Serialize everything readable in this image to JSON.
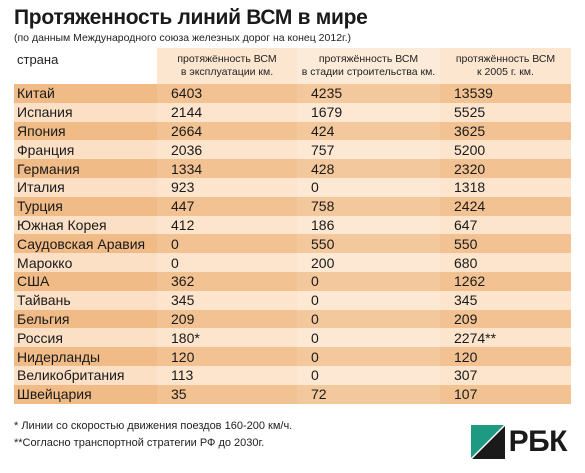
{
  "title": "Протяженность линий ВСМ в мире",
  "subtitle": "(по данным Международного союза железных дорог на конец 2012г.)",
  "table": {
    "headers": {
      "country": "страна",
      "col1_line1": "протяжённость ВСМ",
      "col1_line2": "в эксплуатации км.",
      "col2_line1": "протяжённость ВСМ",
      "col2_line2": "в стадии строительства км.",
      "col3_line1": "протяжённость ВСМ",
      "col3_line2": "к 2005 г. км."
    },
    "rows": [
      {
        "country": "Китай",
        "operating": "6403",
        "construction": "4235",
        "by2005": "13539"
      },
      {
        "country": "Испания",
        "operating": "2144",
        "construction": "1679",
        "by2005": "5525"
      },
      {
        "country": "Япония",
        "operating": "2664",
        "construction": "424",
        "by2005": "3625"
      },
      {
        "country": "Франция",
        "operating": "2036",
        "construction": "757",
        "by2005": "5200"
      },
      {
        "country": "Германия",
        "operating": "1334",
        "construction": "428",
        "by2005": "2320"
      },
      {
        "country": "Италия",
        "operating": "923",
        "construction": "0",
        "by2005": "1318"
      },
      {
        "country": "Турция",
        "operating": "447",
        "construction": "758",
        "by2005": "2424"
      },
      {
        "country": "Южная Корея",
        "operating": "412",
        "construction": "186",
        "by2005": "647"
      },
      {
        "country": "Саудовская Аравия",
        "operating": "0",
        "construction": "550",
        "by2005": "550"
      },
      {
        "country": "Марокко",
        "operating": "0",
        "construction": "200",
        "by2005": "680"
      },
      {
        "country": "США",
        "operating": "362",
        "construction": "0",
        "by2005": "1262"
      },
      {
        "country": "Тайвань",
        "operating": "345",
        "construction": "0",
        "by2005": "345"
      },
      {
        "country": "Бельгия",
        "operating": "209",
        "construction": "0",
        "by2005": "209"
      },
      {
        "country": "Россия",
        "operating": "180*",
        "construction": "0",
        "by2005": "2274**"
      },
      {
        "country": "Нидерланды",
        "operating": "120",
        "construction": "0",
        "by2005": "120"
      },
      {
        "country": "Великобритания",
        "operating": "113",
        "construction": "0",
        "by2005": "307"
      },
      {
        "country": "Швейцария",
        "operating": "35",
        "construction": "72",
        "by2005": "107"
      }
    ]
  },
  "notes": [
    "*  Линии со скоростью движения поездов 160-200 км/ч.",
    "**Согласно транспортной стратегии РФ до 2030г."
  ],
  "logo": {
    "text": "РБК",
    "colors": {
      "green": "#1e9a82",
      "dark": "#1a1a1a"
    }
  }
}
